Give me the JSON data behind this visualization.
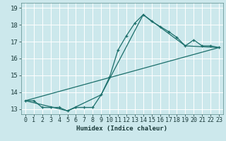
{
  "xlabel": "Humidex (Indice chaleur)",
  "bg_color": "#cce8ec",
  "line_color": "#1a6e6a",
  "grid_color": "#ffffff",
  "xlim": [
    -0.5,
    23.5
  ],
  "ylim": [
    12.7,
    19.3
  ],
  "yticks": [
    13,
    14,
    15,
    16,
    17,
    18,
    19
  ],
  "xticks": [
    0,
    1,
    2,
    3,
    4,
    5,
    6,
    7,
    8,
    9,
    10,
    11,
    12,
    13,
    14,
    15,
    16,
    17,
    18,
    19,
    20,
    21,
    22,
    23
  ],
  "line1_x": [
    0,
    1,
    2,
    3,
    4,
    5,
    6,
    7,
    8,
    9,
    10,
    11,
    12,
    13,
    14,
    15,
    16,
    17,
    18,
    19,
    20,
    21,
    22,
    23
  ],
  "line1_y": [
    13.5,
    13.5,
    13.1,
    13.1,
    13.1,
    12.9,
    13.1,
    13.1,
    13.1,
    13.85,
    14.9,
    16.5,
    17.35,
    18.1,
    18.6,
    18.2,
    17.9,
    17.6,
    17.25,
    16.75,
    17.1,
    16.75,
    16.75,
    16.65
  ],
  "line2_x": [
    0,
    5,
    9,
    14,
    19,
    23
  ],
  "line2_y": [
    13.5,
    12.9,
    13.85,
    18.6,
    16.75,
    16.65
  ],
  "line3_x": [
    0,
    23
  ],
  "line3_y": [
    13.5,
    16.65
  ]
}
